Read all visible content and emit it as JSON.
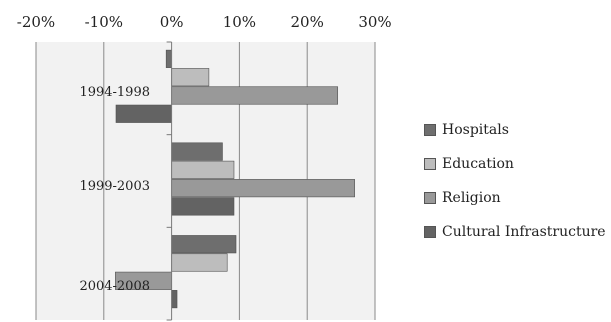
{
  "chart_data": {
    "type": "bar",
    "orientation": "horizontal",
    "categories": [
      "1994-1998",
      "1999-2003",
      "2004-2008"
    ],
    "series": [
      {
        "name": "Hospitals",
        "color": "#6e6e6e",
        "values": [
          -0.8,
          7.5,
          9.5
        ]
      },
      {
        "name": "Education",
        "color": "#bdbdbd",
        "values": [
          5.5,
          9.2,
          8.2
        ]
      },
      {
        "name": "Religion",
        "color": "#999999",
        "values": [
          24.5,
          27.0,
          -8.3
        ]
      },
      {
        "name": "Cultural Infrastructure",
        "color": "#636363",
        "values": [
          -8.2,
          9.2,
          0.8
        ]
      }
    ],
    "xlim": [
      -20,
      30
    ],
    "xticks": [
      "-20%",
      "-10%",
      "0%",
      "10%",
      "20%",
      "30%"
    ],
    "xtick_values": [
      -20,
      -10,
      0,
      10,
      20,
      30
    ],
    "grid": true,
    "legend_position": "right",
    "title": "",
    "xlabel": "",
    "ylabel": ""
  }
}
